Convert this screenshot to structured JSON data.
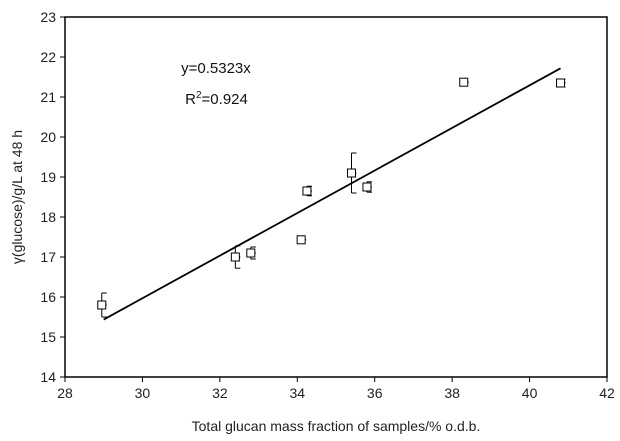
{
  "chart_data": {
    "type": "scatter",
    "title": "",
    "xlabel": "Total glucan mass fraction of samples/% o.d.b.",
    "ylabel": "γ(glucose)/g/L at 48 h",
    "xlim": [
      28,
      42
    ],
    "ylim": [
      14,
      23
    ],
    "xticks": [
      28,
      30,
      32,
      34,
      36,
      38,
      40,
      42
    ],
    "yticks": [
      14,
      15,
      16,
      17,
      18,
      19,
      20,
      21,
      22,
      23
    ],
    "grid": false,
    "legend": "none",
    "marker": "open-square",
    "points": [
      {
        "x": 28.95,
        "y": 15.8,
        "err": 0.3
      },
      {
        "x": 32.4,
        "y": 17.0,
        "err": 0.28
      },
      {
        "x": 32.8,
        "y": 17.1,
        "err": 0.15
      },
      {
        "x": 34.1,
        "y": 17.43,
        "err": 0.0
      },
      {
        "x": 34.25,
        "y": 18.65,
        "err": 0.12
      },
      {
        "x": 35.4,
        "y": 19.1,
        "err": 0.5
      },
      {
        "x": 35.8,
        "y": 18.75,
        "err": 0.13
      },
      {
        "x": 38.3,
        "y": 21.37,
        "err": 0.0
      },
      {
        "x": 40.8,
        "y": 21.35,
        "err": 0.1
      }
    ],
    "fit": {
      "type": "linear",
      "slope": 0.5323,
      "x_range": [
        29.0,
        40.8
      ]
    },
    "annotations": {
      "equation": "y=0.5323x",
      "r2_prefix": "R",
      "r2_sup": "2",
      "r2_value": "=0.924",
      "anchor_x": 31.0,
      "anchor_y": 21.6
    }
  }
}
